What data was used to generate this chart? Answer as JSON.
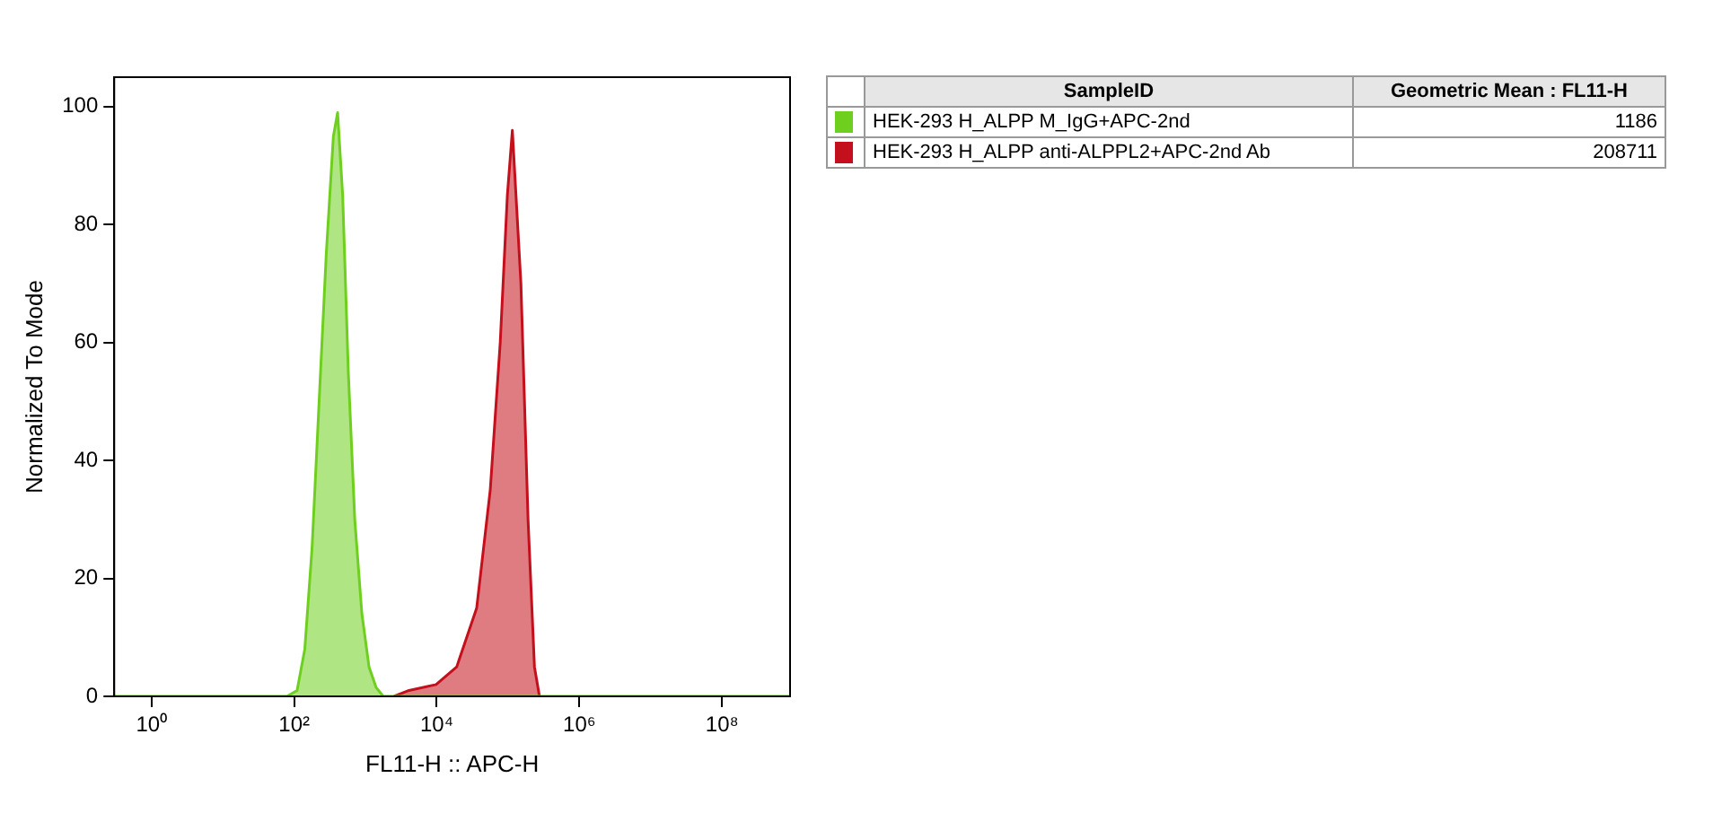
{
  "chart_data": {
    "type": "area",
    "xlabel": "FL11-H :: APC-H",
    "ylabel": "Normalized To Mode",
    "log": "x",
    "xlim": [
      0.3,
      900000000
    ],
    "xticks": [
      {
        "value": 1,
        "label": "10⁰"
      },
      {
        "value": 100,
        "label": "10²"
      },
      {
        "value": 10000,
        "label": "10⁴"
      },
      {
        "value": 1000000,
        "label": "10⁶"
      },
      {
        "value": 100000000,
        "label": "10⁸"
      }
    ],
    "ylim": [
      0,
      105
    ],
    "yticks": [
      0,
      20,
      40,
      60,
      80,
      100
    ],
    "grid": false,
    "legend": "right",
    "legend_title": "SampleID",
    "annotations": [
      "Geometric Mean : FL11-H",
      "1186",
      "208711"
    ],
    "series": [
      {
        "name": "HEK-293 H_ALPP M_IgG+APC-2nd",
        "color": "#6fcf1f",
        "x": [
          0.3,
          79,
          110,
          141,
          178,
          224,
          282,
          355,
          407,
          479,
          575,
          708,
          891,
          1122,
          1413,
          1778,
          900000000
        ],
        "values": [
          0,
          0,
          1,
          8,
          25,
          50,
          75,
          95,
          99,
          85,
          55,
          30,
          14,
          5,
          1.5,
          0,
          0
        ]
      },
      {
        "name": "HEK-293 H_ALPP anti-ALPPL2+APC-2nd Ab",
        "color": "#c4101c",
        "x": [
          2512,
          4074,
          9772,
          19055,
          36308,
          56234,
          77625,
          97724,
          114815,
          151356,
          190546,
          234423,
          275423
        ],
        "values": [
          0,
          1,
          2,
          5,
          15,
          35,
          60,
          85,
          96,
          70,
          30,
          5,
          0
        ]
      }
    ]
  }
}
